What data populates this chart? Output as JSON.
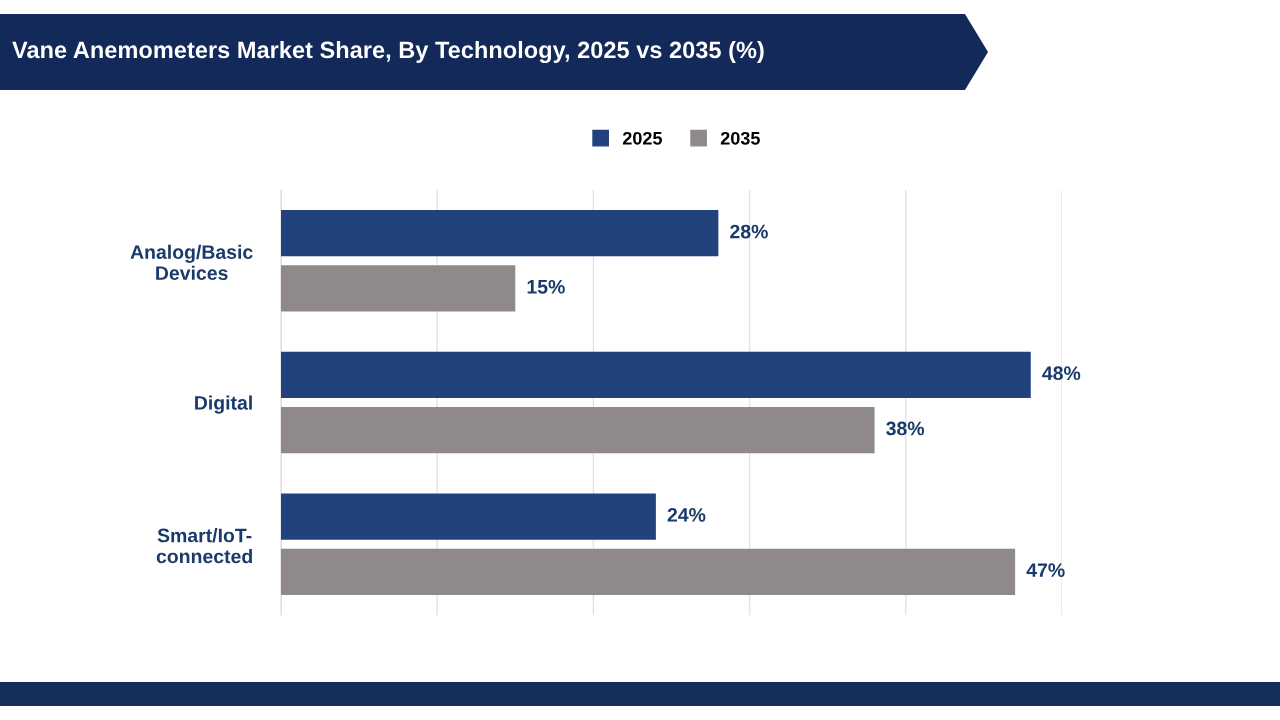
{
  "chart_data": {
    "type": "bar",
    "orientation": "horizontal",
    "title": "Vane Anemometers Market Share, By Technology, 2025 vs 2035 (%)",
    "categories": [
      "Analog/Basic\nDevices",
      "Digital",
      "Smart/IoT-\nconnected"
    ],
    "series": [
      {
        "name": "2025",
        "color": "#21427c",
        "values": [
          28,
          48,
          24
        ],
        "value_labels": [
          "28%",
          "48%",
          "24%"
        ]
      },
      {
        "name": "2035",
        "color": "#8f8a89",
        "values": [
          15,
          38,
          47
        ],
        "value_labels": [
          "15%",
          "38%",
          "47%"
        ]
      }
    ],
    "xlim": [
      0,
      50
    ],
    "xticks": [
      {
        "value": 0,
        "label": null
      },
      {
        "value": 10,
        "label": null
      },
      {
        "value": 20,
        "label": null
      },
      {
        "value": 30,
        "label": null
      },
      {
        "value": 40,
        "label": null
      },
      {
        "value": 50,
        "label": null
      }
    ],
    "grid": "x",
    "legend": "top",
    "tick_labels": "y"
  }
}
